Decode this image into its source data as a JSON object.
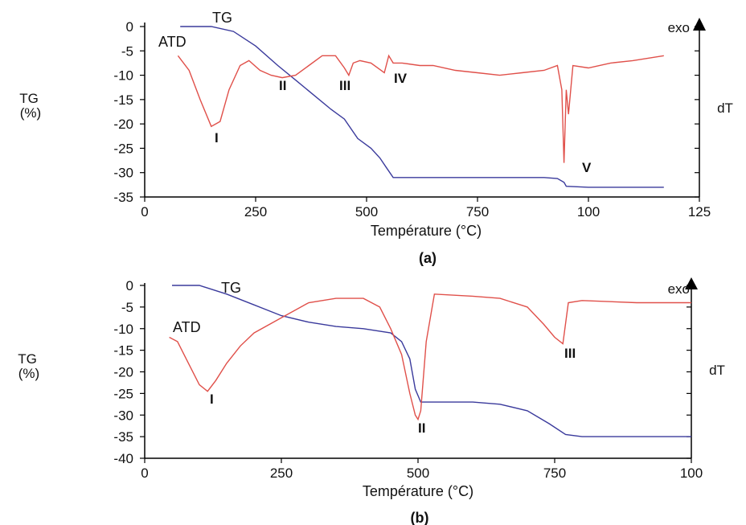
{
  "colors": {
    "tg": "#3a3a9c",
    "atd": "#e0504a",
    "axis": "#000000"
  },
  "chart_data": [
    {
      "type": "line",
      "caption": "(a)",
      "xlabel": "Température (°C)",
      "ylabel": "TG\n(%)",
      "ylabel_right": "dT",
      "exo_label": "exo",
      "x_ticks": [
        "0",
        "250",
        "500",
        "750",
        "100",
        "125"
      ],
      "y_ticks": [
        "0",
        "-5",
        "-10",
        "-15",
        "-20",
        "-25",
        "-30",
        "-35"
      ],
      "xlim": [
        0,
        1250
      ],
      "ylim": [
        -35,
        0
      ],
      "series": [
        {
          "name": "TG",
          "x": [
            80,
            150,
            200,
            250,
            300,
            340,
            380,
            420,
            450,
            480,
            510,
            530,
            545,
            560,
            700,
            800,
            900,
            930,
            945,
            950,
            1000,
            1100,
            1170
          ],
          "y": [
            0,
            0,
            -1,
            -4,
            -8,
            -11,
            -14,
            -17,
            -19,
            -23,
            -25,
            -27,
            -29,
            -31,
            -31,
            -31,
            -31,
            -31.2,
            -32,
            -32.8,
            -33,
            -33,
            -33
          ]
        },
        {
          "name": "ATD",
          "x": [
            75,
            100,
            125,
            150,
            170,
            190,
            215,
            235,
            260,
            285,
            310,
            340,
            370,
            400,
            430,
            450,
            460,
            470,
            485,
            510,
            540,
            550,
            560,
            580,
            620,
            650,
            700,
            750,
            800,
            850,
            900,
            930,
            940,
            945,
            950,
            955,
            965,
            1000,
            1050,
            1100,
            1170
          ],
          "y": [
            -6,
            -9,
            -15,
            -20.5,
            -19.5,
            -13,
            -8,
            -7,
            -9,
            -10,
            -10.5,
            -10,
            -8,
            -6,
            -6,
            -8.5,
            -10,
            -7.5,
            -7,
            -7.5,
            -9.5,
            -6,
            -7.5,
            -7.5,
            -8,
            -8,
            -9,
            -9.5,
            -10,
            -9.5,
            -9,
            -8,
            -13,
            -28,
            -13,
            -18,
            -8,
            -8.5,
            -7.5,
            -7,
            -6
          ]
        }
      ],
      "annotations": [
        "TG",
        "ATD",
        "I",
        "II",
        "III",
        "IV",
        "V"
      ]
    },
    {
      "type": "line",
      "caption": "(b)",
      "xlabel": "Température (°C)",
      "ylabel": "TG\n(%)",
      "ylabel_right": "dT",
      "exo_label": "exo",
      "x_ticks": [
        "0",
        "250",
        "500",
        "750",
        "100"
      ],
      "y_ticks": [
        "0",
        "-5",
        "-10",
        "-15",
        "-20",
        "-25",
        "-30",
        "-35",
        "-40"
      ],
      "xlim": [
        0,
        1000
      ],
      "ylim": [
        -40,
        0
      ],
      "series": [
        {
          "name": "TG",
          "x": [
            50,
            100,
            150,
            200,
            250,
            300,
            350,
            400,
            450,
            470,
            485,
            495,
            505,
            520,
            600,
            650,
            700,
            740,
            770,
            800,
            900,
            1000
          ],
          "y": [
            0,
            0,
            -2,
            -4.5,
            -7,
            -8.5,
            -9.5,
            -10,
            -11,
            -13,
            -17,
            -24,
            -27,
            -27,
            -27,
            -27.5,
            -29,
            -32,
            -34.5,
            -35,
            -35,
            -35
          ]
        },
        {
          "name": "ATD",
          "x": [
            45,
            60,
            80,
            100,
            115,
            130,
            150,
            175,
            200,
            250,
            300,
            350,
            400,
            430,
            450,
            470,
            485,
            495,
            500,
            505,
            515,
            530,
            600,
            650,
            700,
            730,
            750,
            765,
            775,
            800,
            900,
            1000
          ],
          "y": [
            -12,
            -13,
            -18,
            -23,
            -24.5,
            -22,
            -18,
            -14,
            -11,
            -7.5,
            -4,
            -3,
            -3,
            -5,
            -10,
            -16,
            -25,
            -30,
            -31,
            -29,
            -13,
            -2,
            -2.5,
            -3,
            -5,
            -9,
            -12,
            -13.5,
            -4,
            -3.5,
            -4,
            -4
          ]
        }
      ],
      "annotations": [
        "TG",
        "ATD",
        "I",
        "II",
        "III"
      ]
    }
  ]
}
